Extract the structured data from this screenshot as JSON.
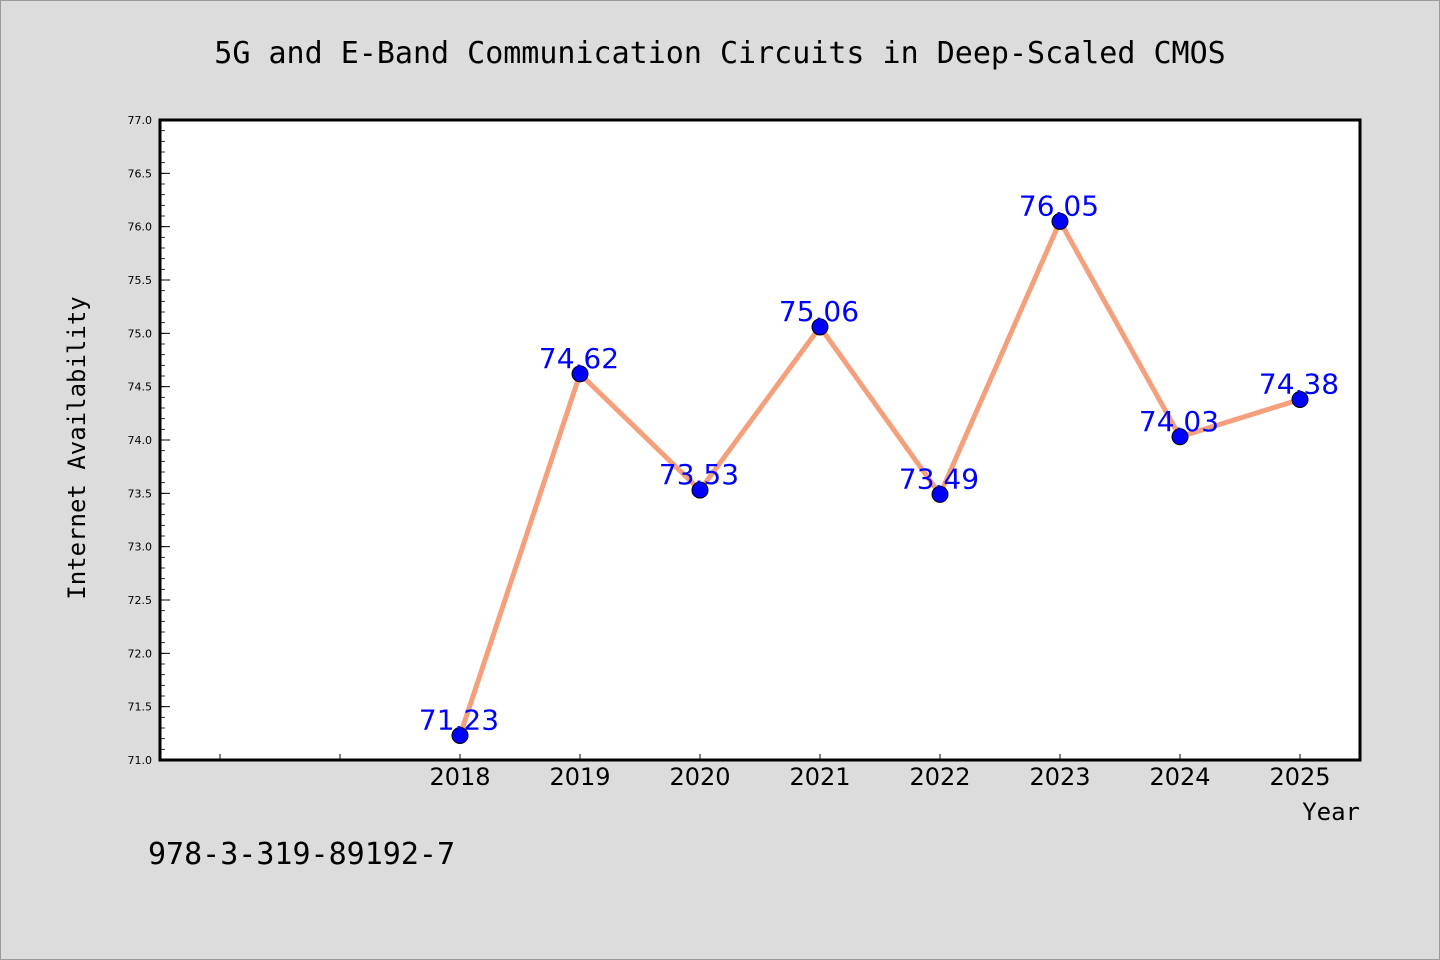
{
  "chart_data": {
    "type": "line",
    "title": "5G and E-Band Communication Circuits in Deep-Scaled CMOS",
    "xlabel": "Year",
    "ylabel": "Internet Availability",
    "footnote": "978-3-319-89192-7",
    "categories": [
      "2018",
      "2019",
      "2020",
      "2021",
      "2022",
      "2023",
      "2024",
      "2025"
    ],
    "series": [
      {
        "values": [
          71.23,
          74.62,
          73.53,
          75.06,
          73.49,
          76.05,
          74.03,
          74.38
        ],
        "color": "#f5a07c"
      }
    ],
    "data_labels": [
      "71.23",
      "74.62",
      "73.53",
      "75.06",
      "73.49",
      "76.05",
      "74.03",
      "74.38"
    ],
    "ylim": [
      71.0,
      77.0
    ],
    "yticks": [
      "71.0",
      "71.5",
      "72.0",
      "72.5",
      "73.0",
      "73.5",
      "74.0",
      "74.5",
      "75.0",
      "75.5",
      "76.0",
      "76.5",
      "77.0"
    ],
    "x_unlabeled_ticks_before": 2,
    "grid": false,
    "marker_color": "#0000ff",
    "label_color": "#0000ff",
    "plot_background": "#ffffff",
    "figure_background": "#dcdcdc"
  }
}
